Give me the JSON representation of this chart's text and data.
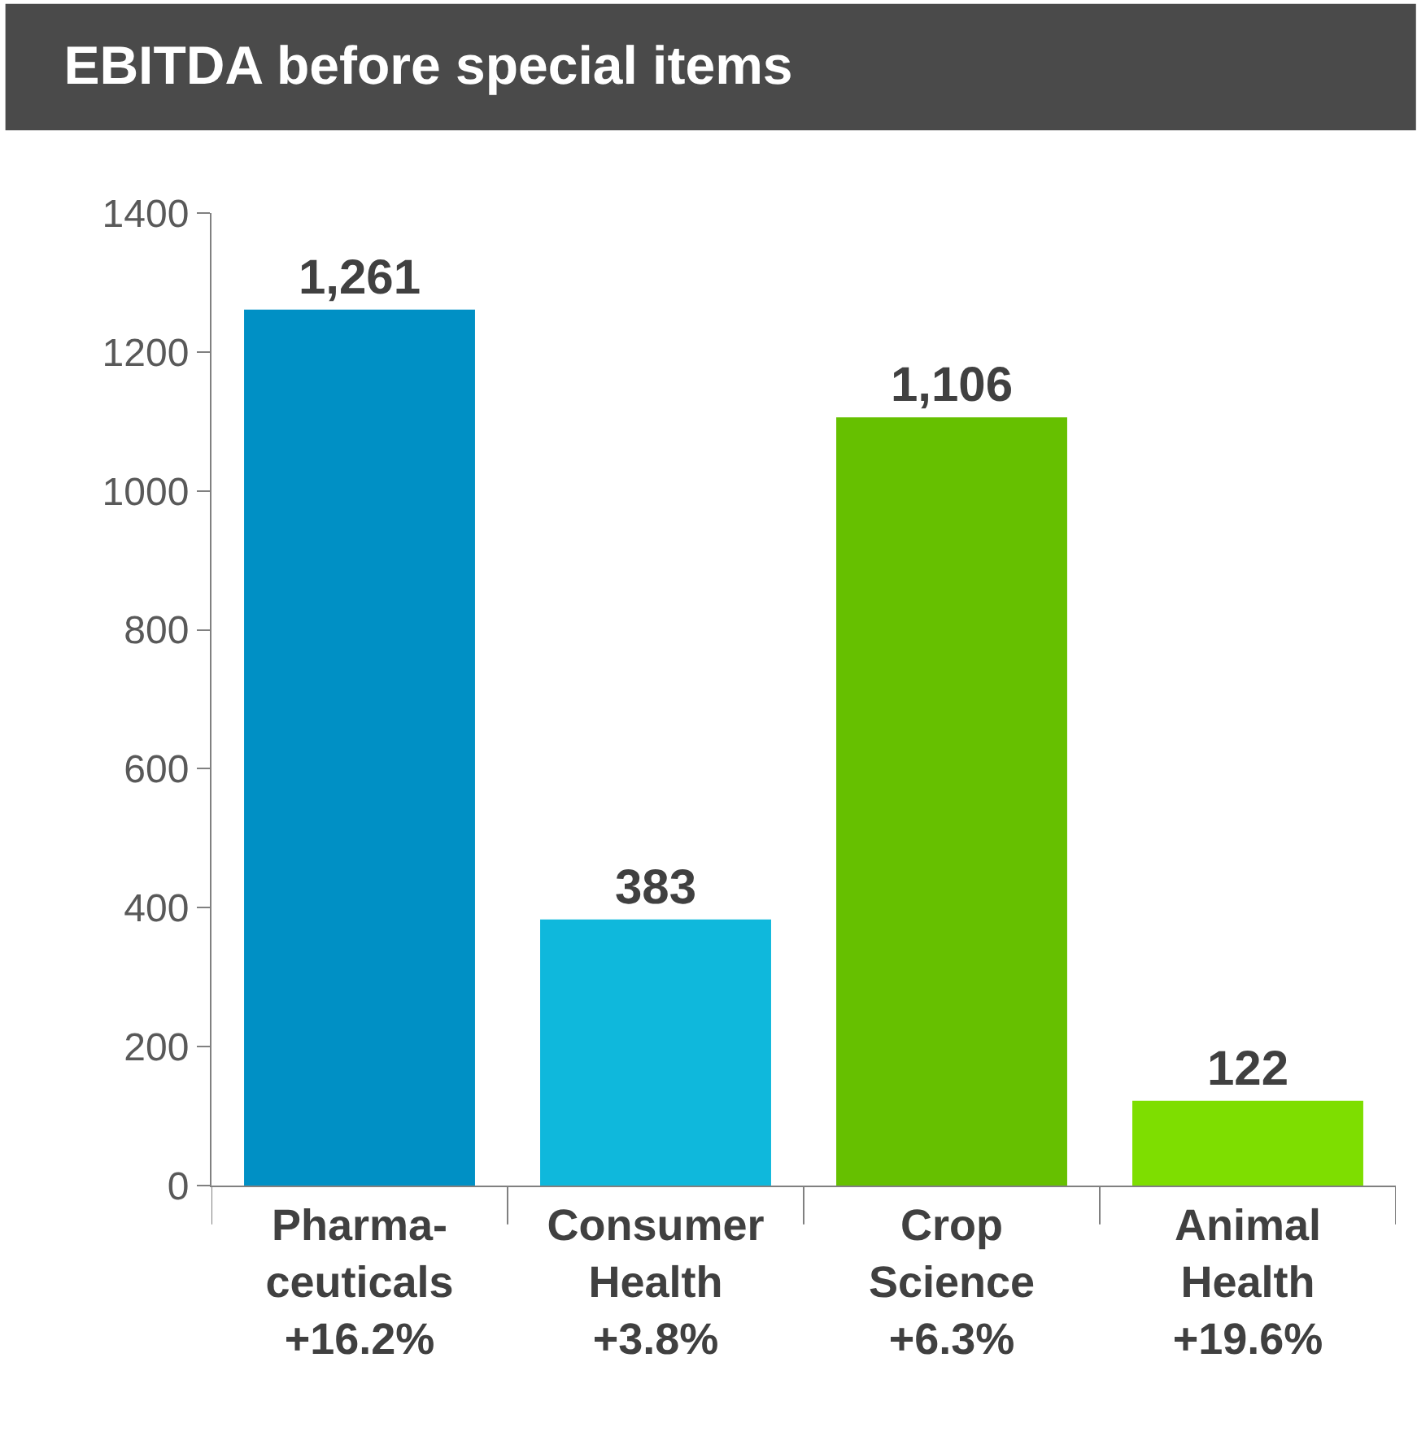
{
  "chart_data": {
    "type": "bar",
    "title": "EBITDA before special items",
    "categories": [
      "Pharma-\nceuticals\n+16.2%",
      "Consumer\nHealth\n+3.8%",
      "Crop\nScience\n+6.3%",
      "Animal\nHealth\n+19.6%"
    ],
    "values": [
      1261,
      383,
      1106,
      122
    ],
    "colors": [
      "#0090c5",
      "#0fb8dc",
      "#66c000",
      "#7ede00"
    ],
    "value_labels": [
      "1,261",
      "383",
      "1,106",
      "122"
    ],
    "ylim": [
      0,
      1400
    ],
    "yticks": [
      0,
      200,
      400,
      600,
      800,
      1000,
      1200,
      1400
    ],
    "grid": false,
    "legend": false
  }
}
